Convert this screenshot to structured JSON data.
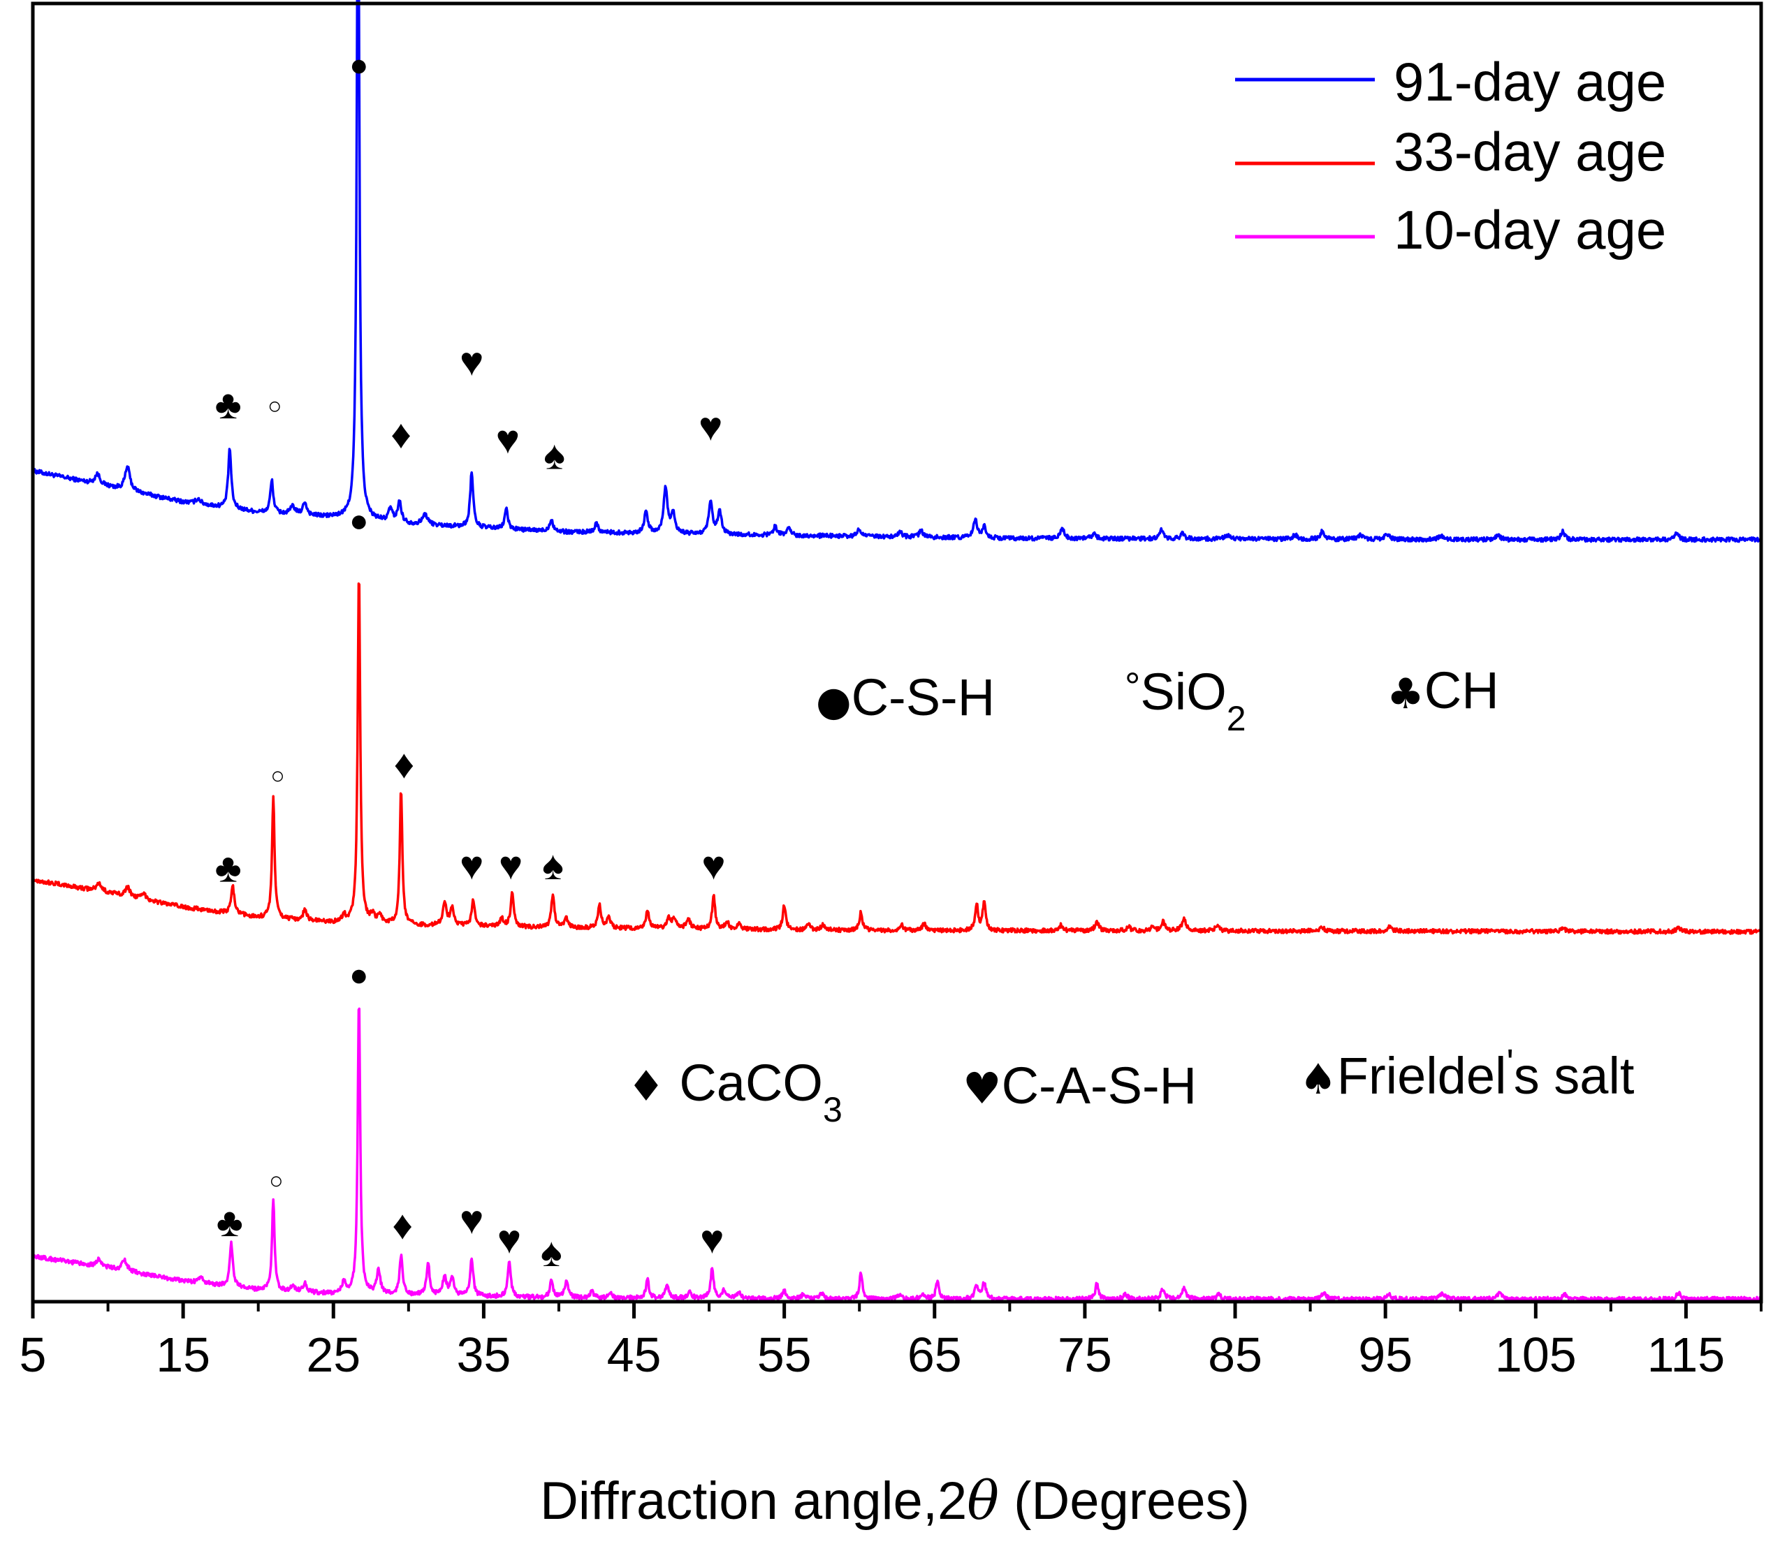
{
  "chart_data": {
    "type": "line",
    "xlabel": "Diffraction angle,2θ (Degrees)",
    "xlabel_parts": [
      "Diffraction angle,2",
      "θ",
      " (Degrees)"
    ],
    "ylabel": "",
    "xlim": [
      5,
      120
    ],
    "ylim": [
      0,
      1
    ],
    "x_ticks": [
      "5",
      "15",
      "25",
      "35",
      "45",
      "55",
      "65",
      "75",
      "85",
      "95",
      "105",
      "115"
    ],
    "x_tick_values": [
      5,
      15,
      25,
      35,
      45,
      55,
      65,
      75,
      85,
      95,
      105,
      115
    ],
    "y_ticks_shown": false,
    "grid": false,
    "legend_position": "top-right",
    "legend": [
      "91-day age",
      "33-day age",
      "10-day age"
    ],
    "series": [
      {
        "name": "91-day age",
        "color": "#0000ff",
        "baseline": [
          [
            5,
            0.64
          ],
          [
            10,
            0.628
          ],
          [
            15,
            0.616
          ],
          [
            20,
            0.608
          ],
          [
            25,
            0.604
          ],
          [
            30,
            0.599
          ],
          [
            40,
            0.593
          ],
          [
            50,
            0.591
          ],
          [
            70,
            0.588
          ],
          [
            100,
            0.587
          ],
          [
            120,
            0.587
          ]
        ],
        "peaks": [
          [
            9.3,
            0.008,
            0.2
          ],
          [
            11.3,
            0.018,
            0.2
          ],
          [
            16,
            0.004,
            0.2
          ],
          [
            18.1,
            0.046,
            0.12
          ],
          [
            20.9,
            0.025,
            0.12
          ],
          [
            22.3,
            0.006,
            0.2
          ],
          [
            23.1,
            0.01,
            0.15
          ],
          [
            26.64,
            0.54,
            0.1
          ],
          [
            28.8,
            0.01,
            0.15
          ],
          [
            29.4,
            0.016,
            0.15
          ],
          [
            31.1,
            0.008,
            0.2
          ],
          [
            34.2,
            0.043,
            0.12
          ],
          [
            36.5,
            0.016,
            0.12
          ],
          [
            39.5,
            0.009,
            0.15
          ],
          [
            42.5,
            0.007,
            0.15
          ],
          [
            45.8,
            0.016,
            0.15
          ],
          [
            47.1,
            0.035,
            0.15
          ],
          [
            47.6,
            0.016,
            0.15
          ],
          [
            50.1,
            0.024,
            0.15
          ],
          [
            50.7,
            0.017,
            0.15
          ],
          [
            54.4,
            0.007,
            0.15
          ],
          [
            55.3,
            0.006,
            0.15
          ],
          [
            60.0,
            0.006,
            0.15
          ],
          [
            62.7,
            0.004,
            0.15
          ],
          [
            64.1,
            0.005,
            0.15
          ],
          [
            67.7,
            0.014,
            0.15
          ],
          [
            68.3,
            0.009,
            0.15
          ],
          [
            73.5,
            0.008,
            0.15
          ],
          [
            75.6,
            0.004,
            0.15
          ],
          [
            80.1,
            0.007,
            0.15
          ],
          [
            81.5,
            0.004,
            0.15
          ],
          [
            84.5,
            0.003,
            0.2
          ],
          [
            89.0,
            0.003,
            0.2
          ],
          [
            90.8,
            0.006,
            0.15
          ],
          [
            93.3,
            0.003,
            0.2
          ],
          [
            95.1,
            0.004,
            0.2
          ],
          [
            98.7,
            0.003,
            0.2
          ],
          [
            102.5,
            0.003,
            0.2
          ],
          [
            106.8,
            0.006,
            0.15
          ],
          [
            114.4,
            0.005,
            0.15
          ]
        ]
      },
      {
        "name": "33-day age",
        "color": "#ff0000",
        "baseline": [
          [
            5,
            0.325
          ],
          [
            10,
            0.315
          ],
          [
            15,
            0.304
          ],
          [
            20,
            0.296
          ],
          [
            25,
            0.292
          ],
          [
            30,
            0.29
          ],
          [
            40,
            0.288
          ],
          [
            60,
            0.286
          ],
          [
            120,
            0.285
          ]
        ],
        "peaks": [
          [
            9.4,
            0.006,
            0.2
          ],
          [
            11.3,
            0.007,
            0.2
          ],
          [
            12.4,
            0.004,
            0.2
          ],
          [
            18.3,
            0.022,
            0.12
          ],
          [
            21.0,
            0.093,
            0.1
          ],
          [
            23.1,
            0.008,
            0.15
          ],
          [
            25.7,
            0.005,
            0.15
          ],
          [
            26.7,
            0.272,
            0.1
          ],
          [
            27.6,
            0.006,
            0.15
          ],
          [
            28.1,
            0.007,
            0.15
          ],
          [
            29.5,
            0.104,
            0.1
          ],
          [
            32.4,
            0.017,
            0.15
          ],
          [
            32.9,
            0.013,
            0.15
          ],
          [
            34.3,
            0.02,
            0.12
          ],
          [
            36.2,
            0.006,
            0.15
          ],
          [
            36.9,
            0.027,
            0.12
          ],
          [
            39.6,
            0.025,
            0.12
          ],
          [
            40.5,
            0.007,
            0.15
          ],
          [
            42.7,
            0.018,
            0.12
          ],
          [
            43.3,
            0.008,
            0.15
          ],
          [
            45.9,
            0.013,
            0.15
          ],
          [
            47.3,
            0.008,
            0.15
          ],
          [
            47.7,
            0.008,
            0.15
          ],
          [
            48.6,
            0.008,
            0.15
          ],
          [
            50.3,
            0.025,
            0.12
          ],
          [
            51.2,
            0.005,
            0.15
          ],
          [
            52.0,
            0.004,
            0.15
          ],
          [
            55.0,
            0.019,
            0.12
          ],
          [
            56.6,
            0.004,
            0.15
          ],
          [
            57.6,
            0.004,
            0.15
          ],
          [
            60.1,
            0.014,
            0.12
          ],
          [
            62.8,
            0.004,
            0.15
          ],
          [
            64.3,
            0.005,
            0.15
          ],
          [
            67.8,
            0.02,
            0.12
          ],
          [
            68.3,
            0.022,
            0.12
          ],
          [
            73.4,
            0.004,
            0.15
          ],
          [
            75.8,
            0.007,
            0.15
          ],
          [
            77.9,
            0.003,
            0.15
          ],
          [
            79.5,
            0.003,
            0.15
          ],
          [
            80.2,
            0.007,
            0.15
          ],
          [
            81.6,
            0.01,
            0.15
          ],
          [
            83.8,
            0.004,
            0.15
          ],
          [
            90.8,
            0.003,
            0.15
          ],
          [
            95.3,
            0.003,
            0.2
          ],
          [
            106.8,
            0.003,
            0.15
          ],
          [
            114.5,
            0.003,
            0.15
          ]
        ]
      },
      {
        "name": "10-day age",
        "color": "#ff00ff",
        "baseline": [
          [
            5,
            0.035
          ],
          [
            10,
            0.026
          ],
          [
            15,
            0.016
          ],
          [
            20,
            0.009
          ],
          [
            25,
            0.006
          ],
          [
            30,
            0.005
          ],
          [
            40,
            0.003
          ],
          [
            60,
            0.002
          ],
          [
            120,
            0.002
          ]
        ],
        "peaks": [
          [
            9.4,
            0.006,
            0.2
          ],
          [
            11.1,
            0.008,
            0.2
          ],
          [
            16.2,
            0.004,
            0.2
          ],
          [
            18.2,
            0.034,
            0.12
          ],
          [
            21.0,
            0.07,
            0.1
          ],
          [
            22.3,
            0.005,
            0.15
          ],
          [
            23.1,
            0.007,
            0.15
          ],
          [
            25.7,
            0.009,
            0.15
          ],
          [
            26.7,
            0.228,
            0.1
          ],
          [
            28.0,
            0.018,
            0.15
          ],
          [
            29.5,
            0.03,
            0.12
          ],
          [
            31.3,
            0.025,
            0.12
          ],
          [
            32.4,
            0.014,
            0.15
          ],
          [
            32.9,
            0.013,
            0.15
          ],
          [
            34.2,
            0.029,
            0.12
          ],
          [
            36.7,
            0.027,
            0.12
          ],
          [
            39.5,
            0.013,
            0.12
          ],
          [
            40.5,
            0.012,
            0.15
          ],
          [
            42.2,
            0.005,
            0.15
          ],
          [
            43.4,
            0.004,
            0.15
          ],
          [
            45.9,
            0.014,
            0.12
          ],
          [
            47.2,
            0.01,
            0.15
          ],
          [
            48.7,
            0.005,
            0.15
          ],
          [
            50.2,
            0.023,
            0.12
          ],
          [
            51.0,
            0.006,
            0.15
          ],
          [
            52.0,
            0.005,
            0.15
          ],
          [
            55.0,
            0.006,
            0.15
          ],
          [
            56.3,
            0.004,
            0.15
          ],
          [
            57.5,
            0.004,
            0.15
          ],
          [
            60.1,
            0.02,
            0.12
          ],
          [
            62.7,
            0.004,
            0.15
          ],
          [
            64.2,
            0.004,
            0.15
          ],
          [
            65.2,
            0.015,
            0.12
          ],
          [
            67.8,
            0.01,
            0.15
          ],
          [
            68.3,
            0.012,
            0.15
          ],
          [
            75.8,
            0.012,
            0.12
          ],
          [
            77.7,
            0.004,
            0.15
          ],
          [
            80.2,
            0.008,
            0.15
          ],
          [
            81.6,
            0.009,
            0.15
          ],
          [
            83.9,
            0.004,
            0.15
          ],
          [
            90.9,
            0.005,
            0.15
          ],
          [
            95.2,
            0.004,
            0.2
          ],
          [
            98.8,
            0.004,
            0.2
          ],
          [
            102.6,
            0.005,
            0.15
          ],
          [
            106.9,
            0.004,
            0.15
          ],
          [
            114.5,
            0.005,
            0.15
          ]
        ]
      }
    ],
    "phase_markers": [
      {
        "symbol": "●",
        "phase": "C-S-H",
        "positions": [
          [
            26.7,
            0.953
          ],
          [
            26.7,
            0.602
          ],
          [
            26.7,
            0.252
          ]
        ]
      },
      {
        "symbol": "○",
        "phase": "SiO2",
        "positions": [
          [
            21.1,
            0.69
          ],
          [
            21.3,
            0.405
          ],
          [
            21.2,
            0.093
          ]
        ]
      },
      {
        "symbol": "♣",
        "phase": "CH",
        "positions": [
          [
            18.0,
            0.691
          ],
          [
            18.0,
            0.334
          ],
          [
            18.1,
            0.061
          ]
        ]
      },
      {
        "symbol": "♦",
        "phase": "CaCO3",
        "positions": [
          [
            29.5,
            0.668
          ],
          [
            29.7,
            0.414
          ],
          [
            29.6,
            0.059
          ]
        ]
      },
      {
        "symbol": "♥",
        "phase": "C-A-S-H",
        "positions": [
          [
            34.2,
            0.724
          ],
          [
            36.6,
            0.664
          ],
          [
            50.1,
            0.674
          ],
          [
            34.2,
            0.336
          ],
          [
            36.8,
            0.336
          ],
          [
            50.3,
            0.336
          ],
          [
            34.2,
            0.063
          ],
          [
            36.7,
            0.048
          ],
          [
            50.2,
            0.048
          ]
        ]
      },
      {
        "symbol": "♠",
        "phase": "Frieldel's salt",
        "positions": [
          [
            39.7,
            0.652
          ],
          [
            39.6,
            0.336
          ],
          [
            39.5,
            0.038
          ]
        ]
      }
    ],
    "phase_legend": [
      {
        "symbol": "●",
        "label": "C-S-H",
        "sub": ""
      },
      {
        "symbol": "°",
        "label": "SiO",
        "sub": "2"
      },
      {
        "symbol": "♣",
        "label": "CH",
        "sub": ""
      },
      {
        "symbol": "♦",
        "label": " CaCO",
        "sub": "3"
      },
      {
        "symbol": "♥",
        "label": "C-A-S-H",
        "sub": ""
      },
      {
        "symbol": "♠",
        "label": "Frieldel",
        "sub": "",
        "suffix": "s salt"
      }
    ]
  }
}
